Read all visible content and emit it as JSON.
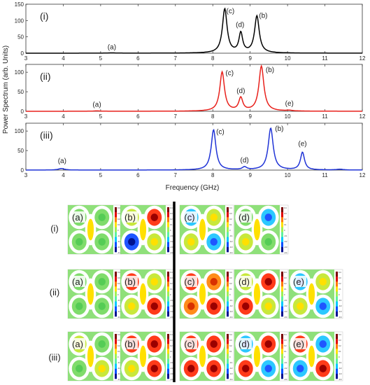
{
  "ylabel": "Power Spectrum (arb. Units)",
  "xlabel": "Frequency (GHz)",
  "chart_data": [
    {
      "type": "line",
      "name": "(i)",
      "color": "#000000",
      "xlim": [
        3,
        12
      ],
      "ylim": [
        0,
        150
      ],
      "xticks": [
        3,
        4,
        5,
        6,
        7,
        8,
        9,
        10,
        11,
        12
      ],
      "yticks": [
        0,
        50,
        100,
        150
      ],
      "peaks": [
        {
          "x": 5.3,
          "y": 1,
          "w": 0.12
        },
        {
          "x": 8.32,
          "y": 135,
          "w": 0.075
        },
        {
          "x": 8.75,
          "y": 60,
          "w": 0.06
        },
        {
          "x": 9.18,
          "y": 113,
          "w": 0.075
        }
      ],
      "annotations": [
        {
          "label": "(a)",
          "x": 5.3,
          "y": 12
        },
        {
          "label": "(c)",
          "x": 8.47,
          "y": 122
        },
        {
          "label": "(d)",
          "x": 8.73,
          "y": 80
        },
        {
          "label": "(b)",
          "x": 9.35,
          "y": 108
        }
      ]
    },
    {
      "type": "line",
      "name": "(ii)",
      "color": "#e8201b",
      "xlim": [
        3,
        12
      ],
      "ylim": [
        0,
        120
      ],
      "xticks": [
        3,
        4,
        5,
        6,
        7,
        8,
        9,
        10,
        11,
        12
      ],
      "yticks": [
        0,
        50,
        100
      ],
      "peaks": [
        {
          "x": 4.9,
          "y": 1,
          "w": 0.12
        },
        {
          "x": 8.25,
          "y": 100,
          "w": 0.075
        },
        {
          "x": 8.75,
          "y": 33,
          "w": 0.065
        },
        {
          "x": 9.3,
          "y": 115,
          "w": 0.08
        },
        {
          "x": 10.05,
          "y": 1.5,
          "w": 0.1
        }
      ],
      "annotations": [
        {
          "label": "(a)",
          "x": 4.9,
          "y": 12
        },
        {
          "label": "(c)",
          "x": 8.45,
          "y": 92
        },
        {
          "label": "(d)",
          "x": 8.75,
          "y": 47
        },
        {
          "label": "(b)",
          "x": 9.53,
          "y": 100
        },
        {
          "label": "(e)",
          "x": 10.05,
          "y": 14
        }
      ]
    },
    {
      "type": "line",
      "name": "(iii)",
      "color": "#1f33d6",
      "xlim": [
        3,
        12
      ],
      "ylim": [
        0,
        120
      ],
      "xticks": [
        3,
        4,
        5,
        6,
        7,
        8,
        9,
        10,
        11,
        12
      ],
      "yticks": [
        0,
        50,
        100
      ],
      "peaks": [
        {
          "x": 3.95,
          "y": 4,
          "w": 0.1
        },
        {
          "x": 8.02,
          "y": 103,
          "w": 0.075
        },
        {
          "x": 8.85,
          "y": 7,
          "w": 0.07
        },
        {
          "x": 9.55,
          "y": 107,
          "w": 0.08
        },
        {
          "x": 10.4,
          "y": 45,
          "w": 0.065
        },
        {
          "x": 11.4,
          "y": 2,
          "w": 0.1
        }
      ],
      "annotations": [
        {
          "label": "(a)",
          "x": 3.97,
          "y": 18
        },
        {
          "label": "(c)",
          "x": 8.2,
          "y": 92
        },
        {
          "label": "(d)",
          "x": 8.85,
          "y": 20
        },
        {
          "label": "(b)",
          "x": 9.78,
          "y": 100
        },
        {
          "label": "(e)",
          "x": 10.4,
          "y": 62
        }
      ]
    }
  ],
  "modes": {
    "rows": [
      {
        "label": "(i)",
        "tiles": [
          "(a)",
          "(b)",
          "(c)",
          "(d)"
        ]
      },
      {
        "label": "(ii)",
        "tiles": [
          "(a)",
          "(b)",
          "(c)",
          "(d)",
          "(e)"
        ]
      },
      {
        "label": "(iii)",
        "tiles": [
          "(a)",
          "(b)",
          "(c)",
          "(d)",
          "(e)"
        ]
      }
    ],
    "colorbar_ticks": [
      "0.4",
      "0.3",
      "0.2",
      "0.1",
      "0",
      "-0.1",
      "-0.2",
      "-0.3",
      "-0.4"
    ]
  }
}
